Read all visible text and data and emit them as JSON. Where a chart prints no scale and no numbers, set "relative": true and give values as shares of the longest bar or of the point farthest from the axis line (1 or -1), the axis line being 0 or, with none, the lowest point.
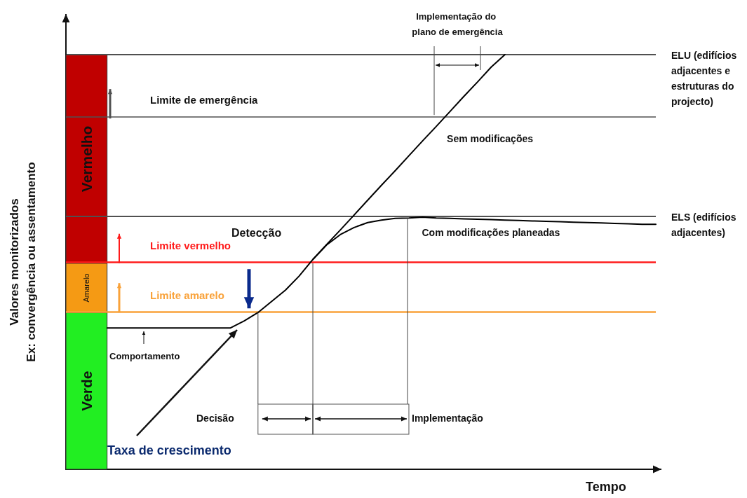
{
  "chart_data": {
    "type": "line",
    "relative": true,
    "xlabel": "Tempo",
    "ylabel": "Valores monitorizados\nEx: convergência ou assentamento",
    "categories": [
      null,
      null,
      null,
      null,
      null,
      null,
      null,
      null,
      null,
      null,
      null,
      null,
      null,
      null,
      null,
      null,
      null,
      null,
      null,
      null,
      null,
      null,
      null,
      null,
      null,
      null,
      null,
      null,
      null,
      null,
      null,
      null,
      null,
      null,
      null,
      null,
      null,
      null,
      null,
      null,
      null,
      null,
      null,
      null
    ],
    "series": [
      {
        "name": "Sem modificações",
        "color": "#000000",
        "values": [
          null,
          null,
          null,
          0.341,
          0.341,
          0.341,
          0.341,
          0.341,
          0.341,
          0.341,
          0.341,
          0.341,
          0.341,
          0.358,
          0.378,
          0.405,
          0.432,
          0.466,
          0.506,
          0.542,
          0.577,
          0.613,
          0.649,
          0.685,
          0.72,
          0.756,
          0.792,
          0.827,
          0.863,
          0.899,
          0.934,
          0.97,
          1.0,
          null,
          null,
          null,
          null,
          null,
          null,
          null,
          null,
          null,
          null,
          null
        ]
      },
      {
        "name": "Com modificações planeadas",
        "color": "#000000",
        "values": [
          null,
          null,
          null,
          null,
          null,
          null,
          null,
          null,
          null,
          null,
          null,
          null,
          null,
          null,
          null,
          null,
          null,
          null,
          0.506,
          0.541,
          0.566,
          0.583,
          0.595,
          0.601,
          0.605,
          0.606,
          0.608,
          0.606,
          0.605,
          0.604,
          0.603,
          0.602,
          0.601,
          0.6,
          0.599,
          0.598,
          0.597,
          0.596,
          0.595,
          0.594,
          0.593,
          0.592,
          0.591,
          0.591
        ]
      }
    ],
    "ref_lines": [
      {
        "axis": "y",
        "value": 1.0,
        "label": "ELU (edifícios adjacentes e estruturas do projecto)",
        "color": "#505050"
      },
      {
        "axis": "y",
        "value": 0.846,
        "label": "Limite de emergência",
        "color": "#505050"
      },
      {
        "axis": "y",
        "value": 0.606,
        "label": "ELS (edifícios adjacentes)",
        "color": "#505050"
      },
      {
        "axis": "y",
        "value": 0.497,
        "label": "Limite vermelho",
        "color": "#ff1a1a"
      },
      {
        "axis": "y",
        "value": 0.378,
        "label": "Limite amarelo",
        "color": "#f9a23a"
      }
    ],
    "bands": [
      {
        "axis": "y",
        "from": 0,
        "to": 0.378,
        "label": "Verde",
        "color": "#22ee22"
      },
      {
        "axis": "y",
        "from": 0.378,
        "to": 0.497,
        "label": "Amarelo",
        "color": "#f59a14"
      },
      {
        "axis": "y",
        "from": 0.497,
        "to": 1.0,
        "label": "Vermelho",
        "color": "#c00000"
      }
    ],
    "annotations": [
      "Detecção",
      "Decisão",
      "Implementação",
      "Implementação do plano de emergência",
      "Taxa de crescimento",
      "Comportamento"
    ],
    "legend": false,
    "grid": false,
    "tick_labels": false,
    "marker": "none",
    "line_style": "solid"
  }
}
